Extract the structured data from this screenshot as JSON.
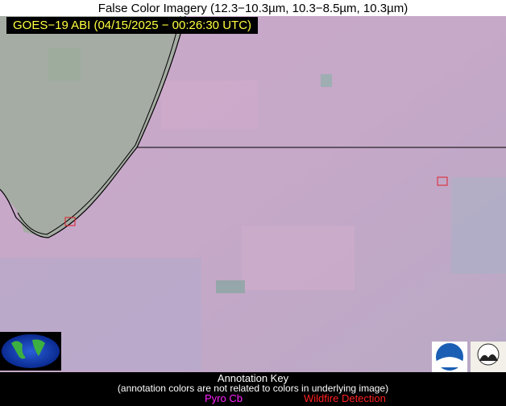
{
  "header": {
    "title": "False Color Imagery (12.3−10.3µm, 10.3−8.5µm, 10.3µm)"
  },
  "image": {
    "timestamp": "GOES−19 ABI (04/15/2025 − 00:26:30 UTC)"
  },
  "annotation_key": {
    "title": "Annotation Key",
    "note": "(annotation colors are not related to colors in underlying image)",
    "items": [
      "Pyro Cb",
      "Wildfire Detection"
    ]
  }
}
